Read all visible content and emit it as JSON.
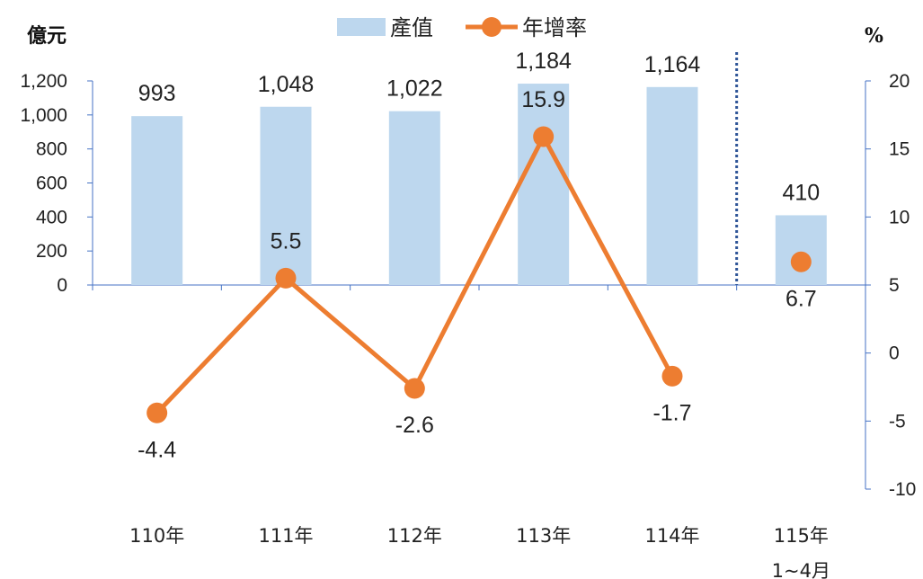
{
  "chart_data": {
    "type": "bar",
    "categories": [
      {
        "line1": "110年",
        "line2": ""
      },
      {
        "line1": "111年",
        "line2": ""
      },
      {
        "line1": "112年",
        "line2": ""
      },
      {
        "line1": "113年",
        "line2": ""
      },
      {
        "line1": "114年",
        "line2": ""
      },
      {
        "line1": "115年",
        "line2": "1~4月"
      }
    ],
    "series": [
      {
        "name": "產值",
        "type": "bar",
        "axis": "left",
        "values": [
          993,
          1048,
          1022,
          1184,
          1164,
          410
        ],
        "labels": [
          "993",
          "1,048",
          "1,022",
          "1,184",
          "1,164",
          "410"
        ],
        "color": "#BDD7EE"
      },
      {
        "name": "年增率",
        "type": "line",
        "axis": "right",
        "values": [
          -4.4,
          5.5,
          -2.6,
          15.9,
          -1.7,
          6.7
        ],
        "labels": [
          "-4.4",
          "5.5",
          "-2.6",
          "15.9",
          "-1.7",
          "6.7"
        ],
        "color": "#ED7D31",
        "connected": [
          true,
          true,
          true,
          true,
          false
        ]
      }
    ],
    "left_axis": {
      "unit": "億元",
      "ylim": [
        -1200,
        1200
      ],
      "tick_values": [
        0,
        200,
        400,
        600,
        800,
        1000,
        1200
      ],
      "tick_labels": [
        "0",
        "200",
        "400",
        "600",
        "800",
        "1,000",
        "1,200"
      ]
    },
    "right_axis": {
      "unit": "%",
      "ylim": [
        -10,
        20
      ],
      "tick_values": [
        -10,
        -5,
        0,
        5,
        10,
        15,
        20
      ],
      "tick_labels": [
        "-10",
        "-5",
        "0",
        "5",
        "10",
        "15",
        "20"
      ],
      "color": "#4472C4"
    },
    "separator_after_category": 4,
    "legend": {
      "placement": "top-center"
    },
    "grid": false
  }
}
